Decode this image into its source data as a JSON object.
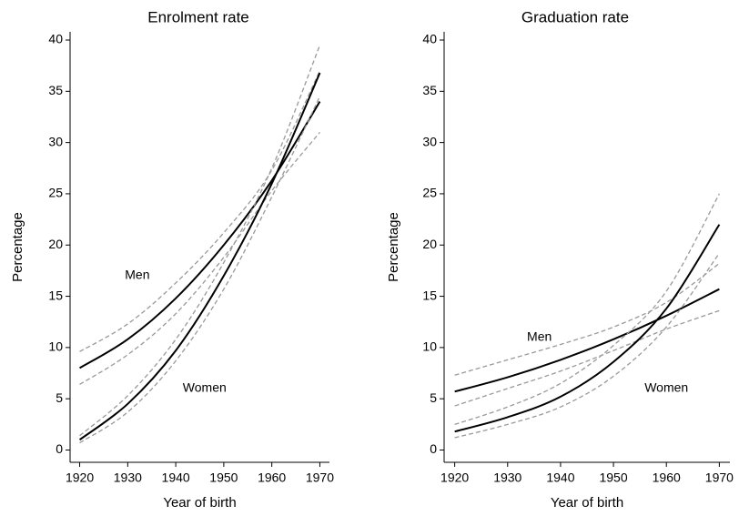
{
  "chart_data": [
    {
      "type": "line",
      "title": "Enrolment rate",
      "xlabel": "Year of birth",
      "ylabel": "Percentage",
      "x": [
        1920,
        1930,
        1940,
        1950,
        1960,
        1970
      ],
      "series": [
        {
          "name": "Men",
          "color": "#000000",
          "values": [
            8,
            10.8,
            14.8,
            20,
            26.3,
            34
          ],
          "lower": [
            6.4,
            9.3,
            13.3,
            18.8,
            25.3,
            31
          ],
          "upper": [
            9.6,
            12.3,
            16.3,
            21.2,
            27.3,
            37
          ]
        },
        {
          "name": "Women",
          "color": "#000000",
          "values": [
            1,
            4.5,
            9.7,
            17,
            26,
            36.8
          ],
          "lower": [
            0.7,
            3.7,
            8.7,
            15.7,
            24.7,
            34.5
          ],
          "upper": [
            1.4,
            5.3,
            10.8,
            18.3,
            27.5,
            39.5
          ]
        }
      ],
      "ci_color": "#999999",
      "annotations": [
        {
          "text": "Men",
          "x": 1932,
          "y": 17
        },
        {
          "text": "Women",
          "x": 1946,
          "y": 6
        }
      ],
      "xlim": [
        1918,
        1972
      ],
      "xticks": [
        1920,
        1930,
        1940,
        1950,
        1960,
        1970
      ],
      "ylim": [
        -1.2,
        40.8
      ],
      "yticks": [
        0,
        5,
        10,
        15,
        20,
        25,
        30,
        35,
        40
      ],
      "grid": false
    },
    {
      "type": "line",
      "title": "Graduation rate",
      "xlabel": "Year of birth",
      "ylabel": "Percentage",
      "x": [
        1920,
        1930,
        1940,
        1950,
        1960,
        1970
      ],
      "series": [
        {
          "name": "Men",
          "color": "#000000",
          "values": [
            5.7,
            7.1,
            8.8,
            10.8,
            13.1,
            15.7
          ],
          "lower": [
            4.3,
            6,
            7.7,
            9.7,
            11.8,
            13.6
          ],
          "upper": [
            7.3,
            8.8,
            10.3,
            12,
            14.4,
            18.2
          ]
        },
        {
          "name": "Women",
          "color": "#000000",
          "values": [
            1.8,
            3.2,
            5.2,
            8.6,
            13.8,
            22
          ],
          "lower": [
            1.2,
            2.5,
            4.2,
            7.2,
            12,
            19.2
          ],
          "upper": [
            2.5,
            4.2,
            6.5,
            10.2,
            15.5,
            25
          ]
        }
      ],
      "ci_color": "#999999",
      "annotations": [
        {
          "text": "Men",
          "x": 1936,
          "y": 11
        },
        {
          "text": "Women",
          "x": 1960,
          "y": 6
        }
      ],
      "xlim": [
        1918,
        1972
      ],
      "xticks": [
        1920,
        1930,
        1940,
        1950,
        1960,
        1970
      ],
      "ylim": [
        -1.2,
        40.8
      ],
      "yticks": [
        0,
        5,
        10,
        15,
        20,
        25,
        30,
        35,
        40
      ],
      "grid": false
    }
  ]
}
